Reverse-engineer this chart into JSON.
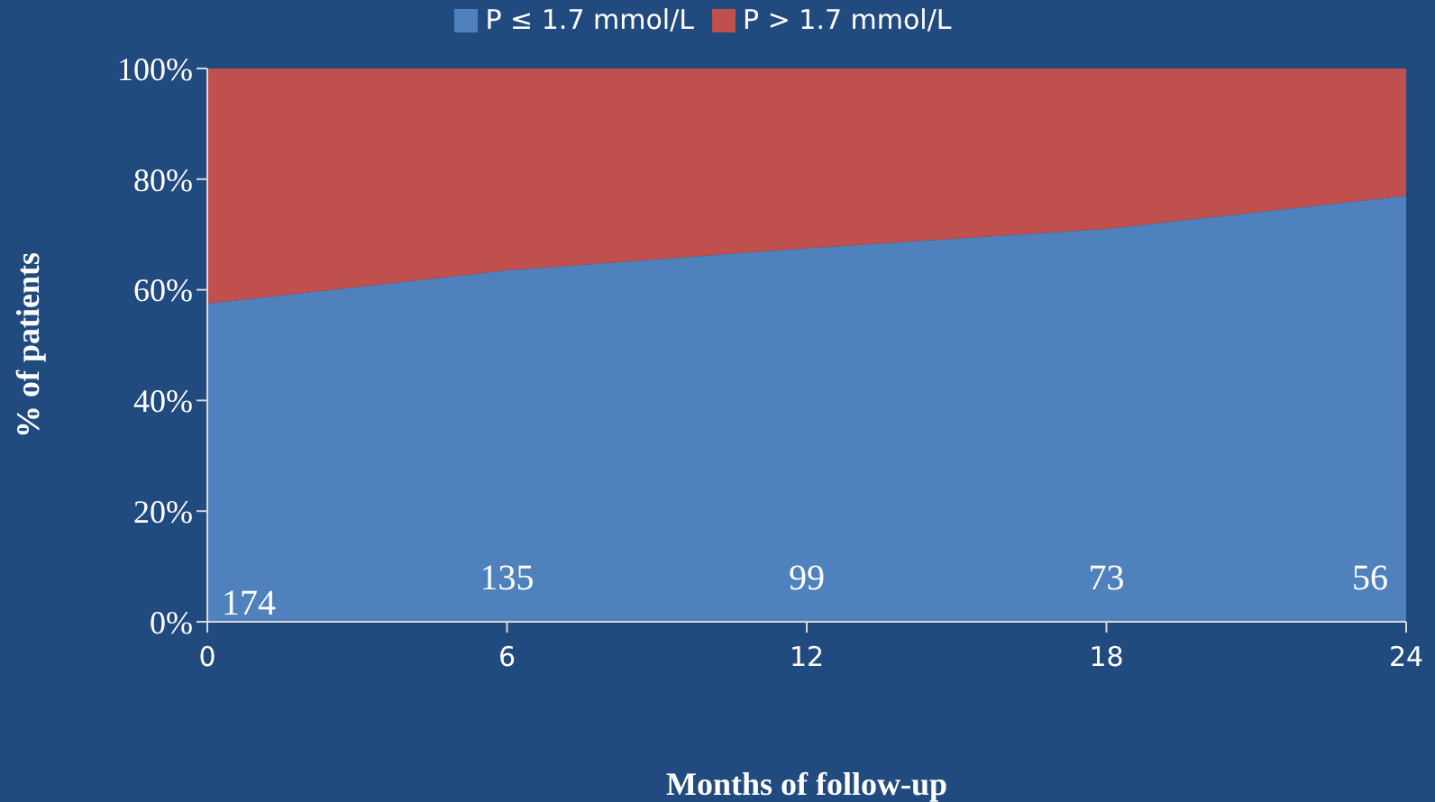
{
  "chart_data": {
    "type": "area",
    "stacked": true,
    "xlabel": "Months of follow-up",
    "ylabel": "% of patients",
    "x": [
      0,
      6,
      12,
      18,
      24
    ],
    "series": [
      {
        "name": "P ≤ 1.7 mmol/L",
        "color": "#4f81bd",
        "values": [
          57.5,
          63.5,
          67.5,
          71,
          77
        ]
      },
      {
        "name": "P > 1.7 mmol/L",
        "color": "#c0504d",
        "values": [
          42.5,
          36.5,
          32.5,
          29,
          23
        ]
      }
    ],
    "xlim": [
      0,
      24
    ],
    "xticks": [
      0,
      6,
      12,
      18,
      24
    ],
    "ylim": [
      0,
      100
    ],
    "yticks": [
      {
        "value": 0,
        "label": "0%"
      },
      {
        "value": 20,
        "label": "20%"
      },
      {
        "value": 40,
        "label": "40%"
      },
      {
        "value": 60,
        "label": "60%"
      },
      {
        "value": 80,
        "label": "80%"
      },
      {
        "value": 100,
        "label": "100%"
      }
    ],
    "annotations": [
      "174",
      "135",
      "99",
      "73",
      "56"
    ],
    "grid": false,
    "legend": "top"
  }
}
